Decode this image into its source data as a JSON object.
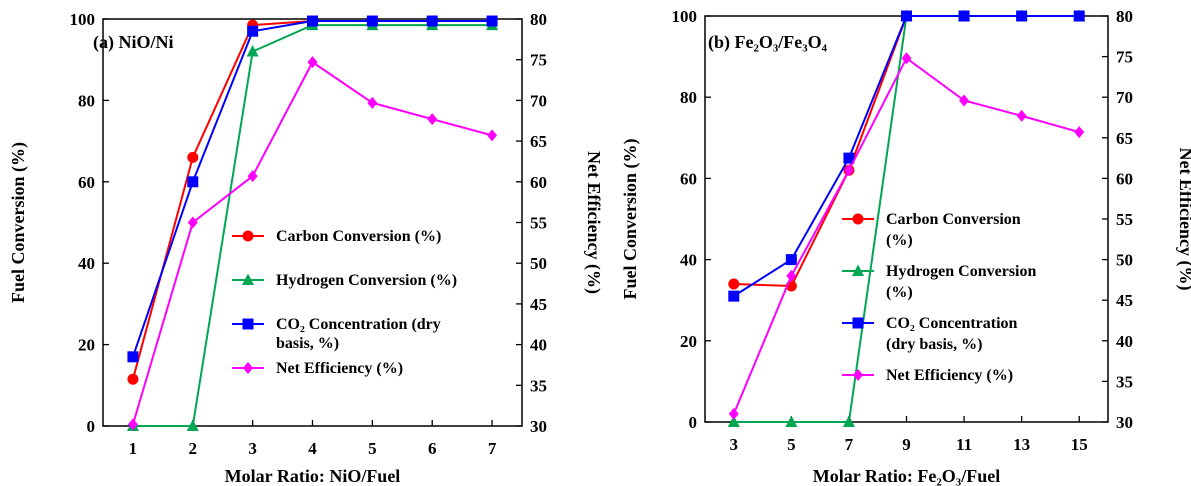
{
  "chart_data": [
    {
      "type": "line",
      "panel_label": "(a) NiO/Ni",
      "xlabel": "Molar Ratio: NiO/Fuel",
      "ylabel": "Fuel Conversion (%)",
      "y2label": "Net Efficiency (%)",
      "x": [
        1,
        2,
        3,
        4,
        5,
        6,
        7
      ],
      "xticks": [
        "1",
        "2",
        "3",
        "4",
        "5",
        "6",
        "7"
      ],
      "xlim": [
        0.5,
        7.5
      ],
      "ylim": [
        0,
        100
      ],
      "yticks": [
        "0",
        "20",
        "40",
        "60",
        "80",
        "100"
      ],
      "y2lim": [
        30,
        80
      ],
      "y2ticks": [
        "30",
        "35",
        "40",
        "45",
        "50",
        "55",
        "60",
        "65",
        "70",
        "75",
        "80"
      ],
      "grid": false,
      "legend_placement": "right-center",
      "series": [
        {
          "name": "Carbon Conversion (%)",
          "name_lines": [
            "Carbon Conversion (%)"
          ],
          "axis": "left",
          "color": "#ff0000",
          "marker": "circle",
          "values": [
            11.5,
            66,
            98.5,
            99.5,
            99.5,
            99.5,
            99.5
          ]
        },
        {
          "name": "Hydrogen Conversion (%)",
          "name_lines": [
            "Hydrogen Conversion (%)"
          ],
          "axis": "left",
          "color": "#00a651",
          "marker": "triangle",
          "values": [
            0,
            0,
            92,
            98.5,
            98.5,
            98.5,
            98.5
          ]
        },
        {
          "name": "CO₂ Concentration (dry basis, %)",
          "name_lines": [
            "CO₂ Concentration (dry",
            "basis, %)"
          ],
          "axis": "left",
          "color": "#0000ff",
          "marker": "square",
          "values": [
            17,
            60,
            97,
            99.5,
            99.5,
            99.5,
            99.5
          ]
        },
        {
          "name": "Net Efficiency (%)",
          "name_lines": [
            "Net Efficiency (%)"
          ],
          "axis": "right",
          "color": "#ff00ff",
          "marker": "diamond",
          "values": [
            30.2,
            55,
            60.7,
            74.7,
            69.7,
            67.7,
            65.7
          ]
        }
      ]
    },
    {
      "type": "line",
      "panel_label": "(b) Fe₂O₃/Fe₃O₄",
      "xlabel": "Molar Ratio: Fe₂O₃/Fuel",
      "ylabel": "Fuel Conversion (%)",
      "y2label": "Net Efficiency (%)",
      "x": [
        3,
        5,
        7,
        9,
        11,
        13,
        15
      ],
      "xticks": [
        "3",
        "5",
        "7",
        "9",
        "11",
        "13",
        "15"
      ],
      "xlim": [
        2,
        16
      ],
      "ylim": [
        0,
        100
      ],
      "yticks": [
        "0",
        "20",
        "40",
        "60",
        "80",
        "100"
      ],
      "y2lim": [
        30,
        80
      ],
      "y2ticks": [
        "30",
        "35",
        "40",
        "45",
        "50",
        "55",
        "60",
        "65",
        "70",
        "75",
        "80"
      ],
      "grid": false,
      "legend_placement": "right-center",
      "series": [
        {
          "name": "Carbon Conversion (%)",
          "name_lines": [
            "Carbon Conversion",
            "(%)"
          ],
          "axis": "left",
          "color": "#ff0000",
          "marker": "circle",
          "values": [
            34,
            33.5,
            62,
            100,
            100,
            100,
            100
          ]
        },
        {
          "name": "Hydrogen Conversion (%)",
          "name_lines": [
            "Hydrogen Conversion",
            "(%)"
          ],
          "axis": "left",
          "color": "#00a651",
          "marker": "triangle",
          "values": [
            0,
            0,
            0,
            100,
            100,
            100,
            100
          ]
        },
        {
          "name": "CO₂ Concentration (dry basis, %)",
          "name_lines": [
            "CO₂ Concentration",
            "(dry basis, %)"
          ],
          "axis": "left",
          "color": "#0000ff",
          "marker": "square",
          "values": [
            31,
            40,
            65,
            100,
            100,
            100,
            100
          ]
        },
        {
          "name": "Net Efficiency (%)",
          "name_lines": [
            "Net Efficiency (%)"
          ],
          "axis": "right",
          "color": "#ff00ff",
          "marker": "diamond",
          "values": [
            31,
            48,
            61,
            74.8,
            69.6,
            67.7,
            65.7
          ]
        }
      ]
    }
  ]
}
